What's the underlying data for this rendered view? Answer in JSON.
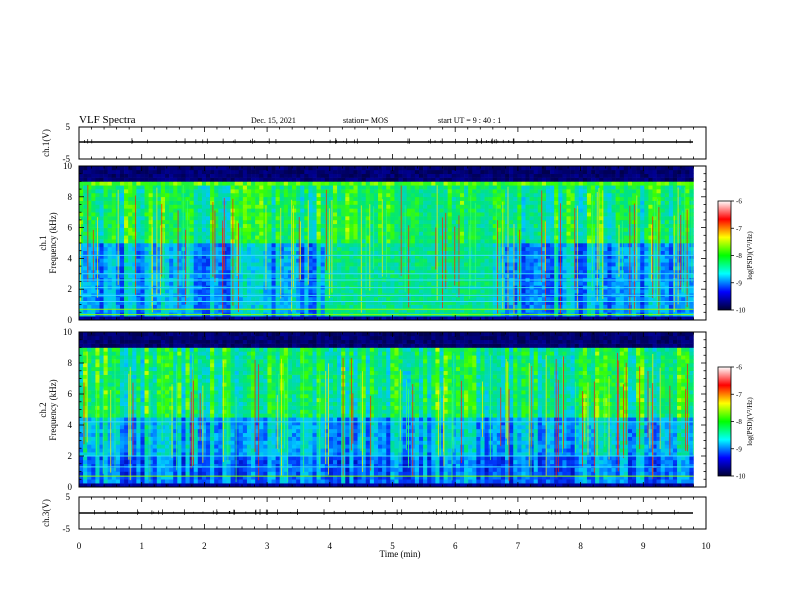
{
  "header": {
    "title": "VLF Spectra",
    "date": "Dec. 15, 2021",
    "station": "station= MOS",
    "start": "start  UT  =   9 : 40 : 1"
  },
  "chart_data": [
    {
      "type": "line",
      "ylabel": "ch.1(V)",
      "ylim": [
        -5,
        5
      ],
      "yticks": [
        "5",
        "-5"
      ],
      "series": [
        {
          "x": [
            0,
            9.8
          ],
          "y": [
            0,
            0
          ],
          "color": "#000000"
        }
      ]
    },
    {
      "type": "heatmap",
      "ylabel": "ch.1\nFrequency (kHz)",
      "ylim": [
        0,
        10
      ],
      "yticks": [
        "0",
        "2",
        "4",
        "6",
        "8",
        "10"
      ],
      "xlim": [
        0,
        10
      ],
      "data_extent_x": [
        0,
        9.8
      ],
      "z_range": [
        -10,
        -6
      ],
      "colorbar": {
        "label": "log(PSD)(V²/Hz)",
        "ticks": [
          "-6",
          "-7",
          "-8",
          "-9",
          "-10"
        ],
        "stops": [
          "#ffffff",
          "#ff0000",
          "#ffff00",
          "#00ff00",
          "#00ffff",
          "#0000ff",
          "#000033"
        ]
      },
      "band_limit_khz": 8.9,
      "hiss_burst_min": [
        3.9,
        6.6
      ],
      "horizontal_lines_khz": [
        0.35,
        0.7,
        1.2,
        1.6,
        2.1,
        2.6,
        3.0,
        4.2
      ]
    },
    {
      "type": "heatmap",
      "ylabel": "ch.2\nFrequency (kHz)",
      "ylim": [
        0,
        10
      ],
      "yticks": [
        "0",
        "2",
        "4",
        "6",
        "8",
        "10"
      ],
      "xlim": [
        0,
        10
      ],
      "data_extent_x": [
        0,
        9.8
      ],
      "z_range": [
        -10,
        -6
      ],
      "colorbar": {
        "label": "log(PSD)(V²/Hz)",
        "ticks": [
          "-6",
          "-7",
          "-8",
          "-9",
          "-10"
        ],
        "stops": [
          "#ffffff",
          "#ff0000",
          "#ffff00",
          "#00ff00",
          "#00ffff",
          "#0000ff",
          "#000033"
        ]
      },
      "horizontal_lines_khz": [
        0.7,
        1.3,
        2.0,
        4.2
      ]
    },
    {
      "type": "line",
      "ylabel": "ch.3(V)",
      "ylim": [
        -5,
        5
      ],
      "yticks": [
        "5",
        "-5"
      ],
      "series": [
        {
          "x": [
            0,
            9.8
          ],
          "y": [
            0,
            0
          ],
          "color": "#000000"
        }
      ]
    }
  ],
  "xaxis": {
    "label": "Time  (min)",
    "ticks": [
      "0",
      "1",
      "2",
      "3",
      "4",
      "5",
      "6",
      "7",
      "8",
      "9",
      "10"
    ],
    "range": [
      0,
      10
    ]
  }
}
